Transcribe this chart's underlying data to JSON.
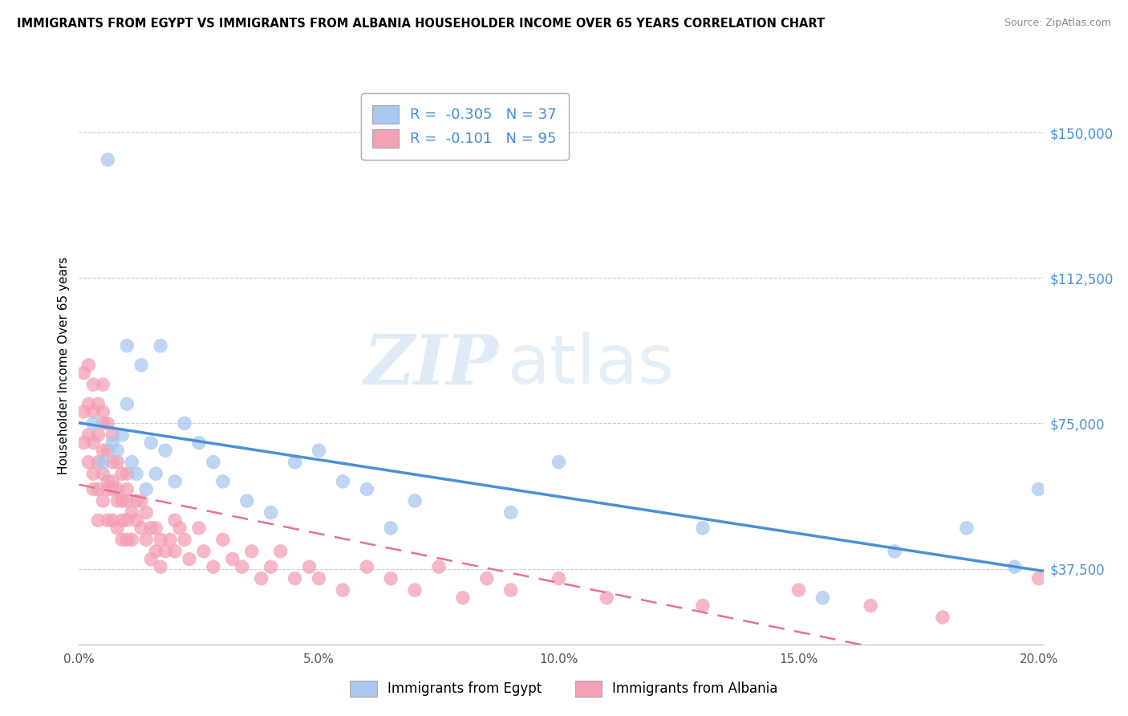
{
  "title": "IMMIGRANTS FROM EGYPT VS IMMIGRANTS FROM ALBANIA HOUSEHOLDER INCOME OVER 65 YEARS CORRELATION CHART",
  "source": "Source: ZipAtlas.com",
  "ylabel": "Householder Income Over 65 years",
  "legend_egypt": "Immigrants from Egypt",
  "legend_albania": "Immigrants from Albania",
  "R_egypt": -0.305,
  "N_egypt": 37,
  "R_albania": -0.101,
  "N_albania": 95,
  "xlim": [
    0.0,
    0.201
  ],
  "ylim": [
    18000,
    162000
  ],
  "yticks": [
    37500,
    75000,
    112500,
    150000
  ],
  "ytick_labels": [
    "$37,500",
    "$75,000",
    "$112,500",
    "$150,000"
  ],
  "xtick_labels": [
    "0.0%",
    "5.0%",
    "10.0%",
    "15.0%",
    "20.0%"
  ],
  "xticks": [
    0.0,
    0.05,
    0.1,
    0.15,
    0.2
  ],
  "color_egypt": "#a8c8f0",
  "color_albania": "#f4a0b5",
  "line_color_egypt": "#4a90d9",
  "line_color_albania": "#e87090",
  "watermark_zip": "ZIP",
  "watermark_atlas": "atlas",
  "egypt_x": [
    0.003,
    0.005,
    0.006,
    0.007,
    0.008,
    0.009,
    0.01,
    0.01,
    0.011,
    0.012,
    0.013,
    0.014,
    0.015,
    0.016,
    0.017,
    0.018,
    0.02,
    0.022,
    0.025,
    0.028,
    0.03,
    0.035,
    0.04,
    0.045,
    0.05,
    0.055,
    0.06,
    0.065,
    0.07,
    0.09,
    0.1,
    0.13,
    0.155,
    0.17,
    0.185,
    0.195,
    0.2
  ],
  "egypt_y": [
    75000,
    65000,
    143000,
    70000,
    68000,
    72000,
    80000,
    95000,
    65000,
    62000,
    90000,
    58000,
    70000,
    62000,
    95000,
    68000,
    60000,
    75000,
    70000,
    65000,
    60000,
    55000,
    52000,
    65000,
    68000,
    60000,
    58000,
    48000,
    55000,
    52000,
    65000,
    48000,
    30000,
    42000,
    48000,
    38000,
    58000
  ],
  "albania_x": [
    0.001,
    0.001,
    0.001,
    0.002,
    0.002,
    0.002,
    0.002,
    0.003,
    0.003,
    0.003,
    0.003,
    0.003,
    0.004,
    0.004,
    0.004,
    0.004,
    0.004,
    0.005,
    0.005,
    0.005,
    0.005,
    0.005,
    0.005,
    0.006,
    0.006,
    0.006,
    0.006,
    0.006,
    0.007,
    0.007,
    0.007,
    0.007,
    0.007,
    0.008,
    0.008,
    0.008,
    0.008,
    0.009,
    0.009,
    0.009,
    0.009,
    0.01,
    0.01,
    0.01,
    0.01,
    0.01,
    0.011,
    0.011,
    0.012,
    0.012,
    0.013,
    0.013,
    0.014,
    0.014,
    0.015,
    0.015,
    0.016,
    0.016,
    0.017,
    0.017,
    0.018,
    0.019,
    0.02,
    0.02,
    0.021,
    0.022,
    0.023,
    0.025,
    0.026,
    0.028,
    0.03,
    0.032,
    0.034,
    0.036,
    0.038,
    0.04,
    0.042,
    0.045,
    0.048,
    0.05,
    0.055,
    0.06,
    0.065,
    0.07,
    0.075,
    0.08,
    0.085,
    0.09,
    0.1,
    0.11,
    0.13,
    0.15,
    0.165,
    0.18,
    0.2
  ],
  "albania_y": [
    70000,
    78000,
    88000,
    65000,
    72000,
    80000,
    90000,
    62000,
    70000,
    78000,
    85000,
    58000,
    65000,
    72000,
    80000,
    58000,
    50000,
    75000,
    68000,
    78000,
    85000,
    55000,
    62000,
    60000,
    68000,
    75000,
    58000,
    50000,
    65000,
    58000,
    72000,
    50000,
    60000,
    55000,
    65000,
    48000,
    58000,
    55000,
    62000,
    50000,
    45000,
    58000,
    50000,
    62000,
    55000,
    45000,
    52000,
    45000,
    55000,
    50000,
    48000,
    55000,
    45000,
    52000,
    48000,
    40000,
    48000,
    42000,
    45000,
    38000,
    42000,
    45000,
    50000,
    42000,
    48000,
    45000,
    40000,
    48000,
    42000,
    38000,
    45000,
    40000,
    38000,
    42000,
    35000,
    38000,
    42000,
    35000,
    38000,
    35000,
    32000,
    38000,
    35000,
    32000,
    38000,
    30000,
    35000,
    32000,
    35000,
    30000,
    28000,
    32000,
    28000,
    25000,
    35000
  ]
}
